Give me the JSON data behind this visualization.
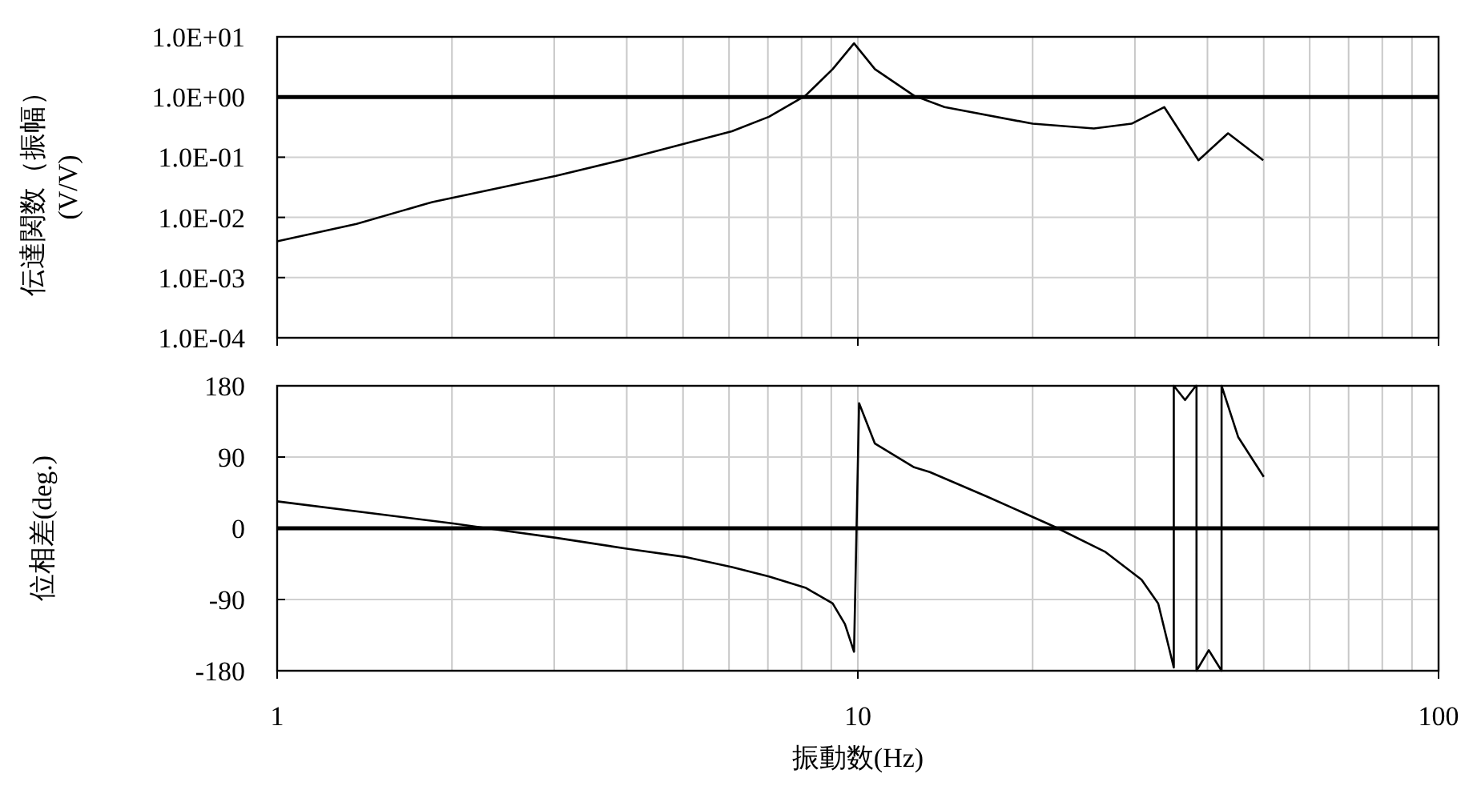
{
  "chart_data": [
    {
      "type": "line",
      "ylabel": "伝達関数（振幅）\n(V/V)",
      "log": "xy",
      "grid": true,
      "tick_labels": "y",
      "xlim": [
        1,
        100
      ],
      "xticks": [
        1,
        {
          "value": 2,
          "label": null
        },
        {
          "value": 3,
          "label": null
        },
        {
          "value": 4,
          "label": null
        },
        {
          "value": 5,
          "label": null
        },
        {
          "value": 6,
          "label": null
        },
        {
          "value": 7,
          "label": null
        },
        {
          "value": 8,
          "label": null
        },
        {
          "value": 9,
          "label": null
        },
        10,
        {
          "value": 20,
          "label": null
        },
        {
          "value": 30,
          "label": null
        },
        {
          "value": 40,
          "label": null
        },
        {
          "value": 50,
          "label": null
        },
        {
          "value": 60,
          "label": null
        },
        {
          "value": 70,
          "label": null
        },
        {
          "value": 80,
          "label": null
        },
        {
          "value": 90,
          "label": null
        },
        100
      ],
      "ylim": [
        0.0001,
        10
      ],
      "yticks": [
        {
          "value": 0.0001,
          "label": "1.0E-04"
        },
        {
          "value": 0.001,
          "label": "1.0E-03"
        },
        {
          "value": 0.01,
          "label": "1.0E-02"
        },
        {
          "value": 0.1,
          "label": "1.0E-01"
        },
        {
          "value": 1,
          "label": "1.0E+00"
        },
        {
          "value": 10,
          "label": "1.0E+01"
        }
      ],
      "ref_lines": [
        {
          "axis": "y",
          "value": 1,
          "color": "#000000"
        }
      ],
      "series": [
        {
          "color": "#000000",
          "x": [
            1,
            1.37,
            1.85,
            3.02,
            4.02,
            6.07,
            7.03,
            8.12,
            9.05,
            9.85,
            10.7,
            12.5,
            14.1,
            20,
            25.5,
            29.6,
            33.7,
            38.6,
            43.4,
            49.9
          ],
          "values": [
            0.004,
            0.0078,
            0.018,
            0.049,
            0.095,
            0.27,
            0.47,
            1.05,
            2.9,
            7.8,
            2.9,
            1.05,
            0.68,
            0.36,
            0.3,
            0.36,
            0.68,
            0.089,
            0.25,
            0.089
          ]
        }
      ]
    },
    {
      "type": "line",
      "ylabel": "位相差(deg.)",
      "xlabel": "振動数(Hz)",
      "log": "x",
      "grid": true,
      "xlim": [
        1,
        100
      ],
      "xticks": [
        1,
        {
          "value": 2,
          "label": null
        },
        {
          "value": 3,
          "label": null
        },
        {
          "value": 4,
          "label": null
        },
        {
          "value": 5,
          "label": null
        },
        {
          "value": 6,
          "label": null
        },
        {
          "value": 7,
          "label": null
        },
        {
          "value": 8,
          "label": null
        },
        {
          "value": 9,
          "label": null
        },
        10,
        {
          "value": 20,
          "label": null
        },
        {
          "value": 30,
          "label": null
        },
        {
          "value": 40,
          "label": null
        },
        {
          "value": 50,
          "label": null
        },
        {
          "value": 60,
          "label": null
        },
        {
          "value": 70,
          "label": null
        },
        {
          "value": 80,
          "label": null
        },
        {
          "value": 90,
          "label": null
        },
        100
      ],
      "ylim": [
        -180,
        180
      ],
      "yticks": [
        -180,
        -90,
        0,
        90,
        180
      ],
      "ref_lines": [
        {
          "axis": "y",
          "value": 0,
          "color": "#000000"
        }
      ],
      "series": [
        {
          "color": "#000000",
          "x": [
            1,
            2.01,
            2.3,
            3.02,
            4.02,
            5.02,
            6.07,
            7.03,
            8.12,
            9.05,
            9.5,
            9.85,
            10.05,
            10.7,
            12.5,
            13.3,
            16.7,
            21.8,
            26.7,
            30.8,
            32.9,
            35,
            35,
            36.6,
            38.2,
            38.3,
            38.3,
            40.2,
            42.3,
            42.3,
            45.2,
            50
          ],
          "values": [
            34,
            6,
            0,
            -12,
            -26,
            -36,
            -49,
            -61,
            -75,
            -95,
            -121,
            -156,
            158,
            107,
            77,
            71,
            40,
            2,
            -30,
            -65,
            -95,
            -176,
            180,
            162,
            180,
            180,
            -180,
            -154,
            -180,
            180,
            115,
            65
          ]
        }
      ]
    }
  ]
}
